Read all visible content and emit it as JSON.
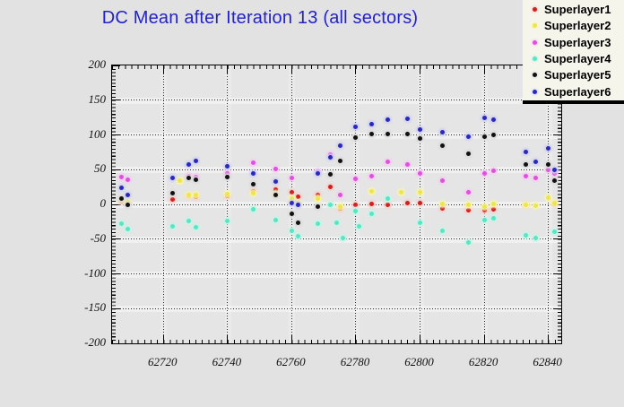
{
  "title": {
    "text": "DC Mean after Iteration 13 (all sectors)",
    "color": "#2222cc"
  },
  "legend": {
    "position": "top-right"
  },
  "chart_data": {
    "type": "scatter",
    "title": "DC Mean after Iteration 13 (all sectors)",
    "xlabel": "",
    "ylabel": "",
    "xlim": [
      62704,
      62844
    ],
    "ylim": [
      -200,
      200
    ],
    "x_ticks": [
      62720,
      62740,
      62760,
      62780,
      62800,
      62820,
      62840
    ],
    "y_ticks": [
      200,
      150,
      100,
      50,
      0,
      -50,
      -100,
      -150,
      -200
    ],
    "grid": true,
    "legend_position": "top-right",
    "series": [
      {
        "name": "Superlayer1",
        "color": "#cf2020",
        "halo": "#f2cfc9",
        "points": [
          [
            62707,
            4
          ],
          [
            62709,
            2
          ],
          [
            62723,
            7
          ],
          [
            62728,
            12
          ],
          [
            62730,
            11
          ],
          [
            62740,
            12
          ],
          [
            62748,
            19
          ],
          [
            62755,
            21
          ],
          [
            62760,
            17
          ],
          [
            62762,
            11
          ],
          [
            62768,
            13
          ],
          [
            62772,
            25
          ],
          [
            62775,
            -6
          ],
          [
            62780,
            0
          ],
          [
            62785,
            1
          ],
          [
            62790,
            0
          ],
          [
            62796,
            2
          ],
          [
            62800,
            2
          ],
          [
            62807,
            -6
          ],
          [
            62815,
            -9
          ],
          [
            62820,
            -8
          ],
          [
            62823,
            -7
          ],
          [
            62833,
            -1
          ],
          [
            62842,
            1
          ]
        ]
      },
      {
        "name": "Superlayer2",
        "color": "#ece64a",
        "halo": "#f7f3b0",
        "points": [
          [
            62707,
            7
          ],
          [
            62709,
            3
          ],
          [
            62725,
            34
          ],
          [
            62728,
            13
          ],
          [
            62730,
            14
          ],
          [
            62740,
            15
          ],
          [
            62748,
            16
          ],
          [
            62755,
            15
          ],
          [
            62760,
            8
          ],
          [
            62762,
            2
          ],
          [
            62768,
            8
          ],
          [
            62775,
            -3
          ],
          [
            62785,
            19
          ],
          [
            62794,
            17
          ],
          [
            62800,
            18
          ],
          [
            62807,
            1
          ],
          [
            62815,
            0
          ],
          [
            62820,
            -3
          ],
          [
            62823,
            1
          ],
          [
            62833,
            0
          ],
          [
            62836,
            -2
          ],
          [
            62840,
            10
          ],
          [
            62842,
            2
          ]
        ]
      },
      {
        "name": "Superlayer3",
        "color": "#e050dd",
        "halo": "#f2cdf0",
        "points": [
          [
            62707,
            40
          ],
          [
            62709,
            36
          ],
          [
            62728,
            41
          ],
          [
            62730,
            39
          ],
          [
            62740,
            45
          ],
          [
            62748,
            60
          ],
          [
            62755,
            51
          ],
          [
            62760,
            38
          ],
          [
            62768,
            47
          ],
          [
            62772,
            71
          ],
          [
            62775,
            13
          ],
          [
            62780,
            37
          ],
          [
            62785,
            41
          ],
          [
            62790,
            61
          ],
          [
            62796,
            57
          ],
          [
            62800,
            45
          ],
          [
            62807,
            34
          ],
          [
            62815,
            17
          ],
          [
            62820,
            45
          ],
          [
            62823,
            49
          ],
          [
            62833,
            41
          ],
          [
            62836,
            38
          ],
          [
            62840,
            50
          ],
          [
            62842,
            45
          ]
        ]
      },
      {
        "name": "Superlayer4",
        "color": "#55e6c6",
        "halo": "#c9f2e4",
        "points": [
          [
            62707,
            -28
          ],
          [
            62709,
            -35
          ],
          [
            62723,
            -31
          ],
          [
            62728,
            -24
          ],
          [
            62730,
            -33
          ],
          [
            62740,
            -24
          ],
          [
            62748,
            -7
          ],
          [
            62755,
            -22
          ],
          [
            62760,
            -38
          ],
          [
            62762,
            -46
          ],
          [
            62768,
            -28
          ],
          [
            62772,
            0
          ],
          [
            62774,
            -26
          ],
          [
            62776,
            -49
          ],
          [
            62780,
            -10
          ],
          [
            62781,
            -32
          ],
          [
            62785,
            -13
          ],
          [
            62790,
            8
          ],
          [
            62800,
            -26
          ],
          [
            62807,
            -38
          ],
          [
            62815,
            -55
          ],
          [
            62820,
            -22
          ],
          [
            62823,
            -20
          ],
          [
            62833,
            -44
          ],
          [
            62836,
            -48
          ],
          [
            62842,
            -39
          ]
        ]
      },
      {
        "name": "Superlayer5",
        "color": "#111111",
        "halo": "#d9d9d9",
        "points": [
          [
            62707,
            9
          ],
          [
            62709,
            -1
          ],
          [
            62723,
            16
          ],
          [
            62728,
            38
          ],
          [
            62730,
            35
          ],
          [
            62740,
            39
          ],
          [
            62748,
            29
          ],
          [
            62755,
            13
          ],
          [
            62760,
            -13
          ],
          [
            62762,
            -26
          ],
          [
            62768,
            -3
          ],
          [
            62772,
            43
          ],
          [
            62775,
            62
          ],
          [
            62780,
            96
          ],
          [
            62785,
            101
          ],
          [
            62790,
            101
          ],
          [
            62796,
            101
          ],
          [
            62800,
            95
          ],
          [
            62807,
            84
          ],
          [
            62815,
            73
          ],
          [
            62820,
            98
          ],
          [
            62823,
            100
          ],
          [
            62833,
            57
          ],
          [
            62840,
            58
          ],
          [
            62842,
            34
          ]
        ]
      },
      {
        "name": "Superlayer6",
        "color": "#2929bd",
        "halo": "#cfcfef",
        "points": [
          [
            62707,
            24
          ],
          [
            62709,
            13
          ],
          [
            62723,
            38
          ],
          [
            62728,
            58
          ],
          [
            62730,
            63
          ],
          [
            62740,
            55
          ],
          [
            62748,
            45
          ],
          [
            62755,
            33
          ],
          [
            62760,
            2
          ],
          [
            62762,
            0
          ],
          [
            62768,
            44
          ],
          [
            62772,
            68
          ],
          [
            62775,
            84
          ],
          [
            62780,
            112
          ],
          [
            62785,
            116
          ],
          [
            62790,
            122
          ],
          [
            62796,
            123
          ],
          [
            62800,
            108
          ],
          [
            62807,
            104
          ],
          [
            62815,
            97
          ],
          [
            62820,
            124
          ],
          [
            62823,
            122
          ],
          [
            62833,
            76
          ],
          [
            62836,
            61
          ],
          [
            62840,
            81
          ],
          [
            62842,
            50
          ]
        ]
      }
    ]
  }
}
